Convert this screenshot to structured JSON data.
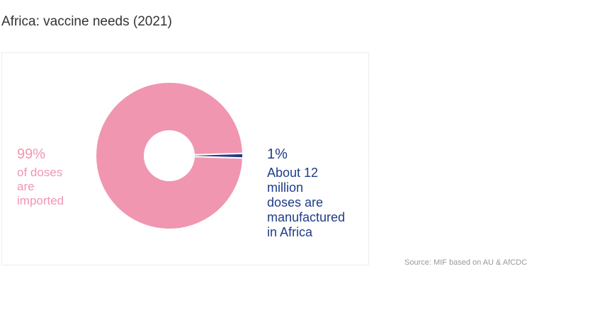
{
  "header": {
    "title": "Africa: vaccine needs (2021)"
  },
  "colors": {
    "imported": "#f096b0",
    "manufactured": "#1f3c88",
    "title": "#333333",
    "source": "#999999"
  },
  "chart_data": {
    "type": "pie",
    "title": "Africa: vaccine needs (2021)",
    "donut": true,
    "series": [
      {
        "name": "of doses are imported",
        "value": 99,
        "color": "#f096b0"
      },
      {
        "name": "doses are manufactured in Africa",
        "value": 1,
        "color": "#1f3c88"
      }
    ]
  },
  "labels": {
    "imported": {
      "pct": "99%",
      "lines": [
        "of doses",
        "are",
        "imported"
      ]
    },
    "manufactured": {
      "pct": "1%",
      "lines": [
        "About 12",
        "million",
        "doses are",
        "manufactured",
        "in Africa"
      ]
    }
  },
  "footer": {
    "source": "Source: MIF based on AU & AfCDC"
  }
}
